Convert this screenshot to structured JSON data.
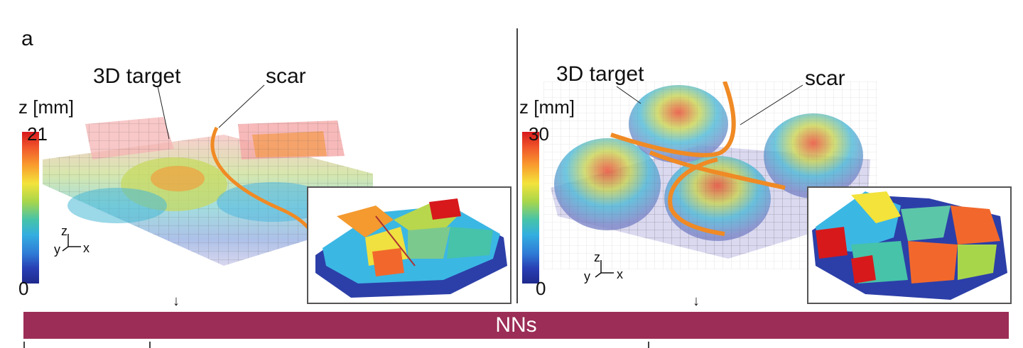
{
  "panel_letter": "a",
  "left": {
    "target_label": "3D target",
    "scar_label": "scar",
    "z_label": "z [mm]",
    "z_max": "21",
    "z_min": "0",
    "axis_x": "x",
    "axis_y": "y",
    "axis_z": "z"
  },
  "right": {
    "target_label": "3D target",
    "scar_label": "scar",
    "z_label": "z [mm]",
    "z_max": "30",
    "z_min": "0",
    "axis_x": "x",
    "axis_y": "y",
    "axis_z": "z"
  },
  "bar": {
    "label": "NNs",
    "color": "#9b2d56"
  },
  "colors": {
    "scar": "#f08a24",
    "colormap": [
      "#1f2a8c",
      "#2f7cd6",
      "#33aee0",
      "#46c3a9",
      "#a8d64b",
      "#f3e33b",
      "#f99c2e",
      "#d7191c"
    ]
  }
}
